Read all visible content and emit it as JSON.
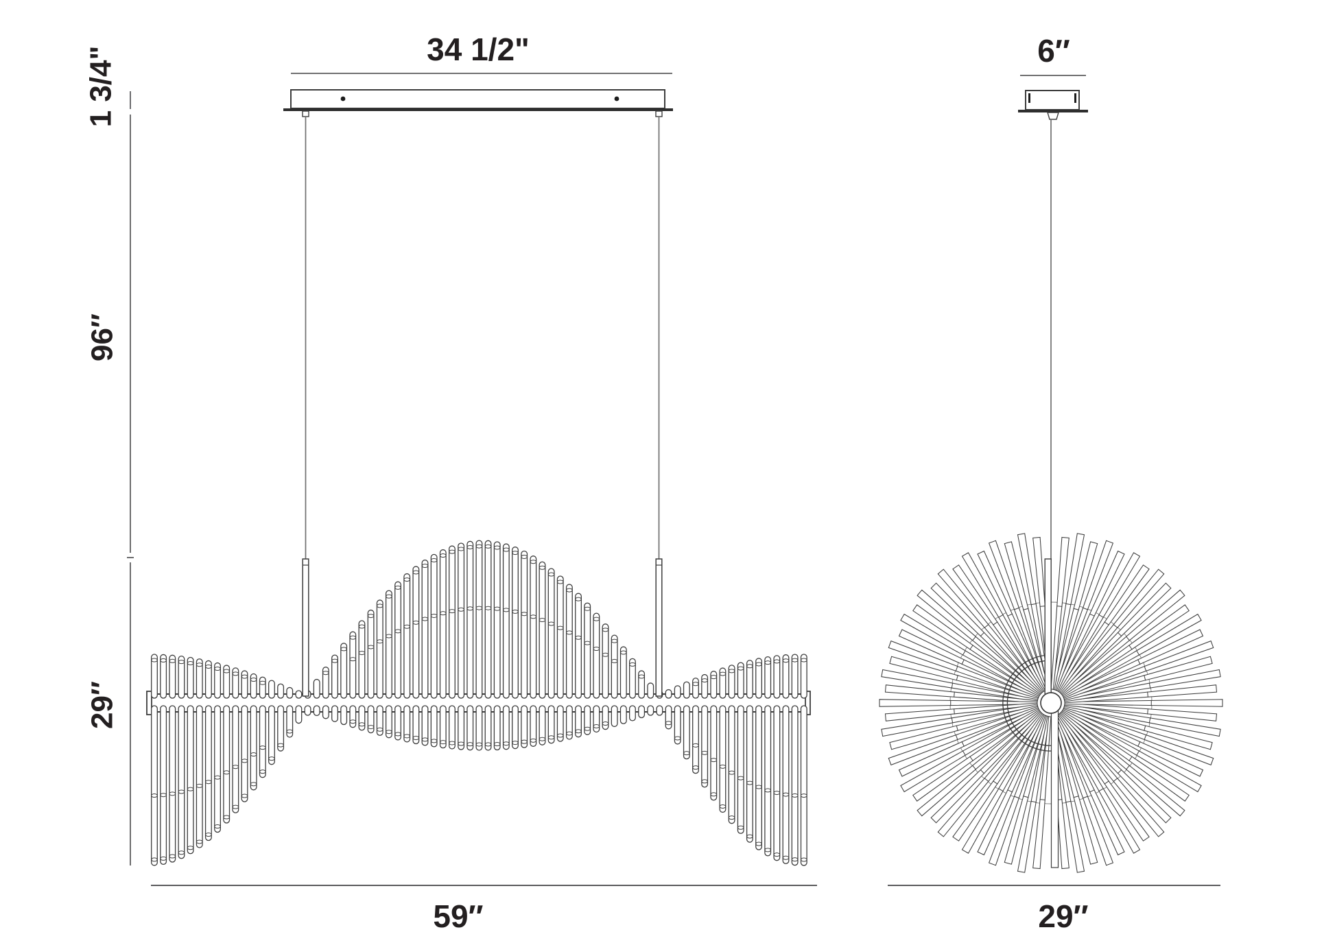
{
  "side_view": {
    "canopy_width_label": "34 1/2\"",
    "canopy_height_label": "1 3/4\"",
    "suspension_length_label": "96″",
    "fixture_height_label": "29″",
    "fixture_width_label": "59″"
  },
  "front_view": {
    "canopy_width_label": "6″",
    "fixture_diameter_label": "29″"
  },
  "colors": {
    "line": "#3c3c3c",
    "dim_line": "#5b5b5d",
    "cable": "#6f6f6f",
    "text": "#231f20",
    "fill": "#ffffff"
  }
}
